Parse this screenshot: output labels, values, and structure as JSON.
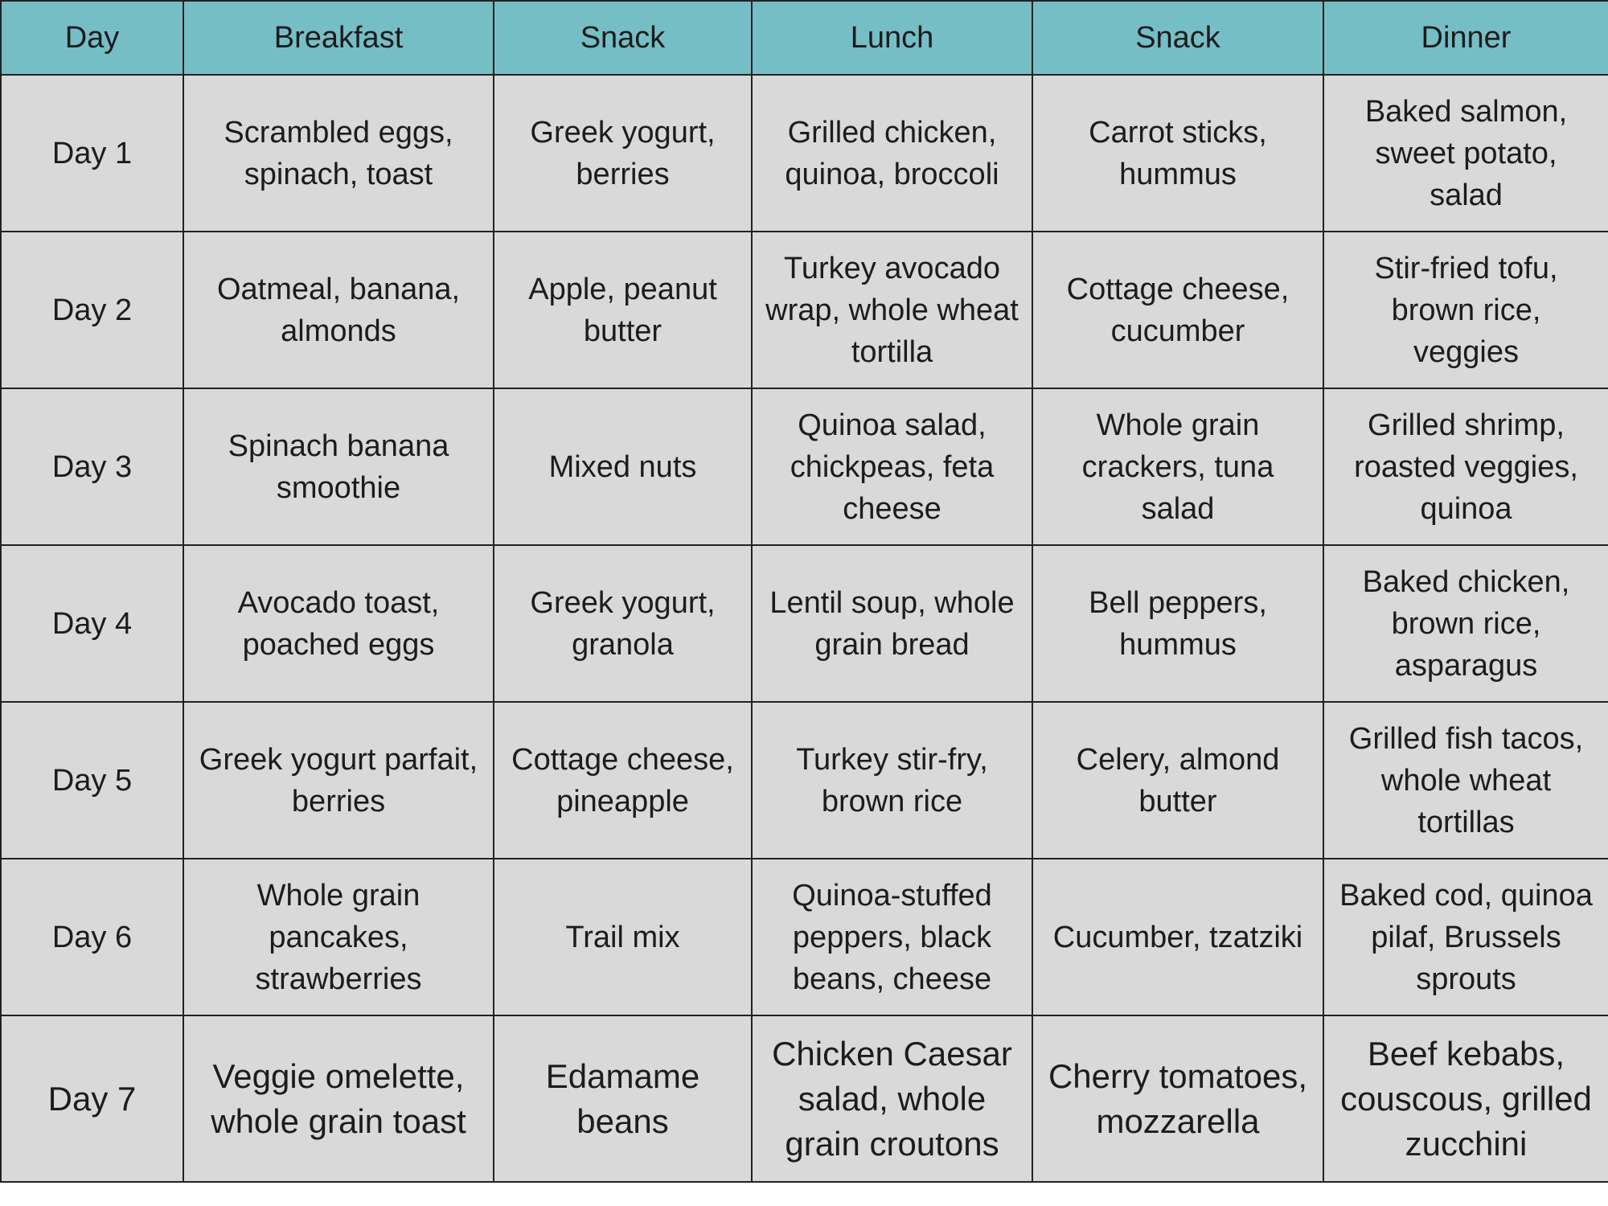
{
  "table": {
    "header": [
      "Day",
      "Breakfast",
      "Snack",
      "Lunch",
      "Snack",
      "Dinner"
    ],
    "rows": [
      [
        "Day 1",
        "Scrambled eggs, spinach, toast",
        "Greek yogurt, berries",
        "Grilled chicken, quinoa, broccoli",
        "Carrot sticks, hummus",
        "Baked salmon, sweet potato, salad"
      ],
      [
        "Day 2",
        "Oatmeal, banana, almonds",
        "Apple, peanut butter",
        "Turkey avocado wrap, whole wheat tortilla",
        "Cottage cheese, cucumber",
        "Stir-fried tofu, brown rice, veggies"
      ],
      [
        "Day 3",
        "Spinach banana smoothie",
        "Mixed nuts",
        "Quinoa salad, chickpeas, feta cheese",
        "Whole grain crackers, tuna salad",
        "Grilled shrimp, roasted veggies, quinoa"
      ],
      [
        "Day 4",
        "Avocado toast, poached eggs",
        "Greek yogurt, granola",
        "Lentil soup, whole grain bread",
        "Bell peppers, hummus",
        "Baked chicken, brown rice, asparagus"
      ],
      [
        "Day 5",
        "Greek yogurt parfait, berries",
        "Cottage cheese, pineapple",
        "Turkey stir-fry, brown rice",
        "Celery, almond butter",
        "Grilled fish tacos, whole wheat tortillas"
      ],
      [
        "Day 6",
        "Whole grain pancakes, strawberries",
        "Trail mix",
        "Quinoa-stuffed peppers, black beans, cheese",
        "Cucumber, tzatziki",
        "Baked cod, quinoa pilaf, Brussels sprouts"
      ],
      [
        "Day 7",
        "Veggie omelette, whole grain toast",
        "Edamame beans",
        "Chicken Caesar salad, whole grain croutons",
        "Cherry tomatoes, mozzarella",
        "Beef kebabs, couscous, grilled zucchini"
      ]
    ]
  }
}
